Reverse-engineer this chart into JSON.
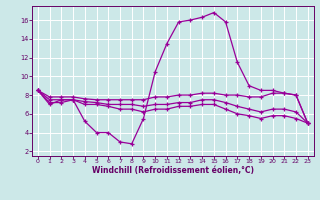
{
  "xlabel": "Windchill (Refroidissement éolien,°C)",
  "bg_color": "#cce8e8",
  "line_color": "#990099",
  "grid_color": "#ffffff",
  "xlim": [
    -0.5,
    23.5
  ],
  "ylim": [
    1.5,
    17.5
  ],
  "xticks": [
    0,
    1,
    2,
    3,
    4,
    5,
    6,
    7,
    8,
    9,
    10,
    11,
    12,
    13,
    14,
    15,
    16,
    17,
    18,
    19,
    20,
    21,
    22,
    23
  ],
  "yticks": [
    2,
    4,
    6,
    8,
    10,
    12,
    14,
    16
  ],
  "series": {
    "line1_x": [
      0,
      1,
      2,
      3,
      4,
      5,
      6,
      7,
      8,
      9,
      10,
      11,
      12,
      13,
      14,
      15,
      16,
      17,
      18,
      19,
      20,
      21,
      22,
      23
    ],
    "line1_y": [
      8.5,
      7.0,
      7.5,
      7.5,
      5.2,
      4.0,
      4.0,
      3.0,
      2.8,
      5.5,
      10.5,
      13.5,
      15.8,
      16.0,
      16.3,
      16.8,
      15.8,
      11.5,
      9.0,
      8.5,
      8.5,
      8.2,
      8.0,
      5.0
    ],
    "line2_x": [
      0,
      1,
      2,
      3,
      4,
      5,
      6,
      7,
      8,
      9,
      10,
      11,
      12,
      13,
      14,
      15,
      16,
      17,
      18,
      19,
      20,
      21,
      22,
      23
    ],
    "line2_y": [
      8.5,
      7.8,
      7.8,
      7.8,
      7.6,
      7.5,
      7.5,
      7.5,
      7.5,
      7.5,
      7.8,
      7.8,
      8.0,
      8.0,
      8.2,
      8.2,
      8.0,
      8.0,
      7.8,
      7.8,
      8.2,
      8.2,
      8.0,
      5.0
    ],
    "line3_x": [
      0,
      1,
      2,
      3,
      4,
      5,
      6,
      7,
      8,
      9,
      10,
      11,
      12,
      13,
      14,
      15,
      16,
      17,
      18,
      19,
      20,
      21,
      22,
      23
    ],
    "line3_y": [
      8.5,
      7.5,
      7.5,
      7.5,
      7.3,
      7.2,
      7.0,
      7.0,
      7.0,
      6.8,
      7.0,
      7.0,
      7.2,
      7.2,
      7.5,
      7.5,
      7.2,
      6.8,
      6.5,
      6.2,
      6.5,
      6.5,
      6.2,
      5.0
    ],
    "line4_x": [
      0,
      1,
      2,
      3,
      4,
      5,
      6,
      7,
      8,
      9,
      10,
      11,
      12,
      13,
      14,
      15,
      16,
      17,
      18,
      19,
      20,
      21,
      22,
      23
    ],
    "line4_y": [
      8.5,
      7.2,
      7.2,
      7.5,
      7.0,
      7.0,
      6.8,
      6.5,
      6.5,
      6.2,
      6.5,
      6.5,
      6.8,
      6.8,
      7.0,
      7.0,
      6.5,
      6.0,
      5.8,
      5.5,
      5.8,
      5.8,
      5.5,
      5.0
    ]
  }
}
